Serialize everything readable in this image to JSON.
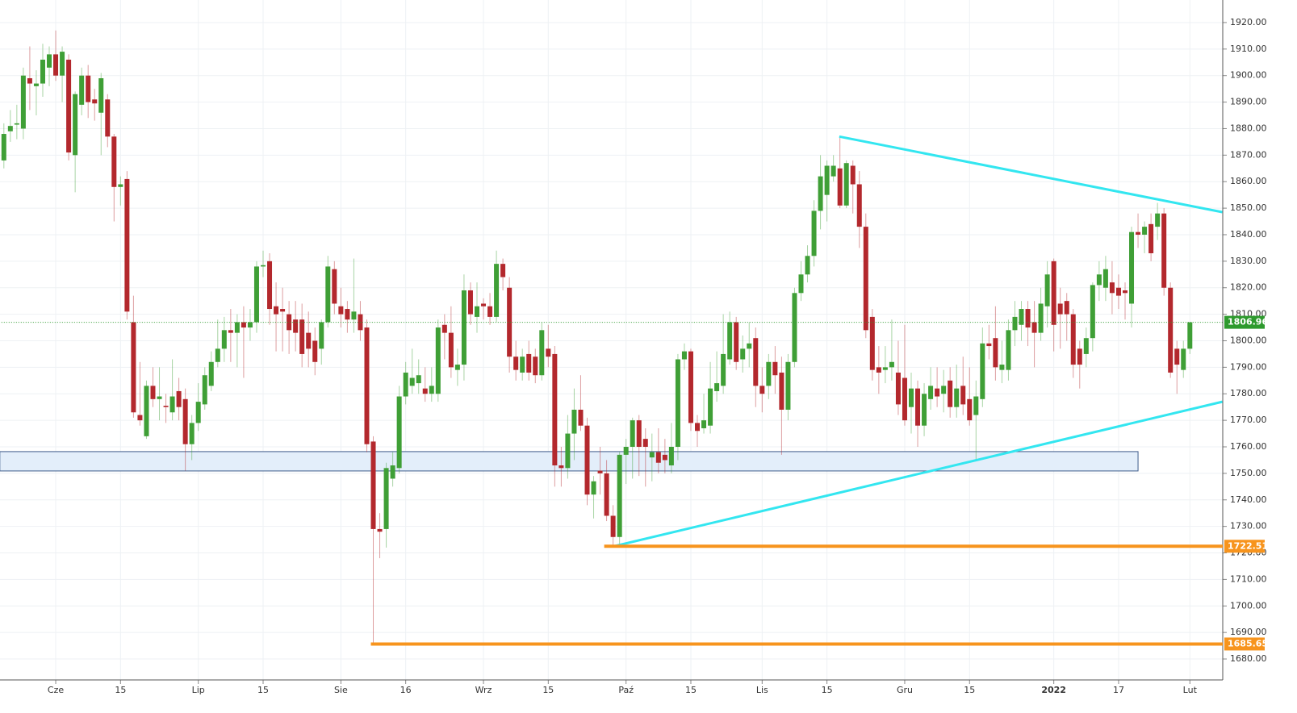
{
  "chart_data": {
    "type": "candlestick",
    "categories": [
      null,
      null,
      null,
      null,
      null,
      null,
      null,
      null,
      "Cze",
      null,
      null,
      null,
      null,
      null,
      null,
      null,
      null,
      null,
      "15",
      null,
      null,
      null,
      null,
      null,
      null,
      null,
      null,
      null,
      null,
      null,
      "Lip",
      null,
      null,
      null,
      null,
      null,
      null,
      null,
      null,
      null,
      "15",
      null,
      null,
      null,
      null,
      null,
      null,
      null,
      null,
      null,
      null,
      null,
      "Sie",
      null,
      null,
      null,
      null,
      null,
      null,
      null,
      null,
      null,
      "16",
      null,
      null,
      null,
      null,
      null,
      null,
      null,
      null,
      null,
      null,
      null,
      "Wrz",
      null,
      null,
      null,
      null,
      null,
      null,
      null,
      null,
      null,
      "15",
      null,
      null,
      null,
      null,
      null,
      null,
      null,
      null,
      null,
      null,
      null,
      "Paź",
      null,
      null,
      null,
      null,
      null,
      null,
      null,
      null,
      null,
      "15",
      null,
      null,
      null,
      null,
      null,
      null,
      null,
      null,
      null,
      null,
      "Lis",
      null,
      null,
      null,
      null,
      null,
      null,
      null,
      null,
      null,
      "15",
      null,
      null,
      null,
      null,
      null,
      null,
      null,
      null,
      null,
      null,
      null,
      "Gru",
      null,
      null,
      null,
      null,
      null,
      null,
      null,
      null,
      null,
      "15",
      null,
      null,
      null,
      null,
      null,
      null,
      null,
      null,
      null,
      null,
      null,
      null,
      "2022",
      null,
      null,
      null,
      null,
      null,
      null,
      null,
      null,
      null,
      "17",
      null,
      null,
      null,
      null,
      null,
      null,
      null,
      null,
      null,
      null,
      "Lut"
    ],
    "open": [
      1868,
      1879,
      1881.5,
      1880,
      1899,
      1896,
      1897,
      1903,
      1908,
      1900,
      1906,
      1870,
      1889,
      1900,
      1891,
      1886,
      1891,
      1877,
      1858,
      1861,
      1807,
      1772,
      1764,
      1783,
      1778,
      1775.5,
      1773,
      1781,
      1778,
      1761,
      1769,
      1776,
      1783,
      1792,
      1797,
      1804,
      1803,
      1807,
      1805,
      1807,
      1828,
      1830,
      1813,
      1812,
      1810,
      1808,
      1808,
      1803,
      1800,
      1797,
      1807,
      1827,
      1813,
      1812,
      1808,
      1810,
      1805,
      1762,
      1729,
      1729,
      1748,
      1752,
      1779,
      1783,
      1784,
      1782,
      1780,
      1780,
      1806,
      1803,
      1789,
      1791,
      1819,
      1809,
      1814,
      1813,
      1809,
      1829,
      1820,
      1794,
      1788,
      1795,
      1794,
      1787,
      1797,
      1795,
      1753,
      1752,
      1765,
      1774,
      1768,
      1742,
      1751,
      1750,
      1734,
      1726,
      1757,
      1760,
      1770,
      1763,
      1756,
      1758,
      1757,
      1753,
      1760,
      1793,
      1796,
      1769,
      1767,
      1768,
      1781,
      1783,
      1793,
      1807,
      1793,
      1797,
      1801,
      1783,
      1783,
      1792,
      1788,
      1774,
      1792,
      1818,
      1825,
      1832,
      1849,
      1855,
      1862,
      1865,
      1851,
      1866,
      1859,
      1843,
      1809,
      1790,
      1789,
      1790,
      1788,
      1786,
      1775,
      1782,
      1768,
      1778,
      1782,
      1780,
      1785,
      1775,
      1783,
      1778,
      1772,
      1778,
      1799,
      1801,
      1789,
      1789,
      1804,
      1806,
      1812,
      1807,
      1803,
      1813,
      1830,
      1814,
      1815,
      1810,
      1797,
      1795,
      1801,
      1821,
      1820,
      1822,
      1820,
      1819,
      1814,
      1841,
      1840,
      1844,
      1843,
      1848,
      1820,
      1797,
      1789,
      1797
    ],
    "high": [
      1882,
      1887,
      1889,
      1903,
      1911,
      1902,
      1912,
      1911,
      1917,
      1911,
      1908,
      1894,
      1903,
      1904,
      1895,
      1901,
      1893,
      1878,
      1862,
      1864,
      1817,
      1792,
      1785,
      1790,
      1790,
      1780,
      1793,
      1786,
      1782,
      1772,
      1784,
      1790,
      1796,
      1808,
      1809,
      1812,
      1810,
      1813,
      1812,
      1830,
      1834,
      1833,
      1822,
      1820,
      1815,
      1815,
      1814,
      1811,
      1805,
      1808,
      1832,
      1830,
      1820,
      1815,
      1831,
      1815,
      1808,
      1764,
      1735,
      1754,
      1758,
      1783,
      1792,
      1797,
      1793,
      1790,
      1790,
      1808,
      1810,
      1813,
      1797,
      1825,
      1822,
      1822,
      1816,
      1818,
      1834,
      1831,
      1824,
      1800,
      1797,
      1800,
      1797,
      1807,
      1806,
      1798,
      1760,
      1772,
      1782,
      1787,
      1771,
      1749,
      1760,
      1755,
      1738,
      1758,
      1763,
      1771,
      1772,
      1767,
      1765,
      1767,
      1763,
      1769,
      1795,
      1799,
      1797,
      1772,
      1780,
      1792,
      1796,
      1810,
      1811,
      1809,
      1802,
      1807,
      1805,
      1790,
      1795,
      1798,
      1794,
      1795,
      1820,
      1830,
      1836,
      1853,
      1870,
      1868,
      1870,
      1877,
      1868,
      1868,
      1864,
      1848,
      1812,
      1798,
      1798,
      1808,
      1800,
      1806,
      1788,
      1785,
      1784,
      1790,
      1790,
      1789,
      1790,
      1791,
      1794,
      1790,
      1785,
      1805,
      1806,
      1813,
      1800,
      1808,
      1815,
      1815,
      1815,
      1815,
      1820,
      1830,
      1831,
      1820,
      1818,
      1812,
      1800,
      1805,
      1822,
      1830,
      1832,
      1830,
      1825,
      1822,
      1843,
      1848,
      1845,
      1848,
      1852,
      1850,
      1822,
      1800,
      1800,
      1807
    ],
    "low": [
      1865,
      1875,
      1876,
      1876,
      1887,
      1885,
      1892,
      1896,
      1898,
      1890,
      1868,
      1856,
      1885,
      1884,
      1883,
      1870,
      1873,
      1845,
      1851,
      1808,
      1771,
      1768,
      1763,
      1775,
      1770,
      1769,
      1770,
      1770,
      1751,
      1755,
      1766,
      1774,
      1781,
      1790,
      1792,
      1792,
      1790,
      1786,
      1800,
      1803,
      1824,
      1806,
      1796,
      1796,
      1795,
      1796,
      1790,
      1790,
      1787,
      1791,
      1805,
      1810,
      1805,
      1803,
      1803,
      1800,
      1758,
      1685.65,
      1718,
      1722,
      1745,
      1750,
      1776,
      1780,
      1780,
      1777,
      1777,
      1777,
      1793,
      1786,
      1783,
      1785,
      1806,
      1803,
      1808,
      1806,
      1807,
      1819,
      1788,
      1785,
      1785,
      1785,
      1784,
      1785,
      1790,
      1745,
      1745,
      1748,
      1755,
      1766,
      1738,
      1733,
      1742,
      1732,
      1723,
      1722.51,
      1746,
      1748,
      1749,
      1745,
      1747,
      1750,
      1750,
      1750,
      1755,
      1789,
      1766,
      1760,
      1765,
      1765,
      1777,
      1780,
      1791,
      1789,
      1788,
      1790,
      1775,
      1773,
      1778,
      1780,
      1757,
      1770,
      1790,
      1815,
      1822,
      1828,
      1842,
      1845,
      1860,
      1850,
      1850,
      1848,
      1835,
      1801,
      1785,
      1780,
      1784,
      1785,
      1772,
      1768,
      1765,
      1760,
      1764,
      1774,
      1775,
      1773,
      1771,
      1771,
      1772,
      1768,
      1755,
      1775,
      1793,
      1785,
      1784,
      1785,
      1798,
      1800,
      1798,
      1790,
      1800,
      1805,
      1796,
      1797,
      1800,
      1786,
      1782,
      1790,
      1796,
      1815,
      1815,
      1810,
      1812,
      1808,
      1805,
      1835,
      1833,
      1830,
      1838,
      1817,
      1786,
      1780,
      1786,
      1795
    ],
    "close": [
      1878,
      1881,
      1882,
      1900,
      1897,
      1897,
      1906,
      1908,
      1900,
      1909,
      1871,
      1893,
      1900,
      1890,
      1889.5,
      1899,
      1877,
      1858,
      1859,
      1811,
      1773,
      1770,
      1783,
      1778,
      1779,
      1775,
      1779,
      1775,
      1761,
      1769,
      1777,
      1787,
      1792,
      1797,
      1804,
      1803,
      1807,
      1805,
      1807,
      1828,
      1828.5,
      1812,
      1810,
      1811,
      1804,
      1803,
      1795,
      1797,
      1792,
      1807,
      1828,
      1814,
      1810,
      1808,
      1811,
      1804,
      1761,
      1729,
      1728,
      1752,
      1753,
      1779,
      1788,
      1786,
      1787,
      1780,
      1783,
      1805,
      1803,
      1790,
      1791,
      1819,
      1810,
      1813,
      1813,
      1809,
      1829,
      1824,
      1794,
      1789,
      1794,
      1788,
      1787,
      1804,
      1794,
      1753,
      1752,
      1765,
      1774,
      1768,
      1742,
      1747,
      1750,
      1734,
      1726,
      1757,
      1760,
      1770,
      1760,
      1760,
      1758,
      1754,
      1755,
      1760,
      1793,
      1796,
      1769,
      1766,
      1770,
      1782,
      1784,
      1795,
      1807,
      1792,
      1797,
      1799,
      1783,
      1780,
      1792,
      1787,
      1774,
      1792,
      1818,
      1825,
      1832,
      1849,
      1862,
      1866,
      1866,
      1851,
      1867,
      1859,
      1843,
      1804,
      1789,
      1788,
      1790,
      1792,
      1776,
      1770,
      1782,
      1768,
      1780,
      1783,
      1779,
      1783,
      1775,
      1782,
      1776,
      1770,
      1779,
      1799,
      1798,
      1790,
      1791,
      1804,
      1809,
      1812,
      1805,
      1803,
      1814,
      1825,
      1806,
      1810,
      1810,
      1791,
      1791,
      1801,
      1821,
      1825,
      1827,
      1818,
      1817,
      1818,
      1841,
      1840,
      1843,
      1833,
      1848,
      1820,
      1788,
      1791,
      1797,
      1806.96
    ],
    "up_color": "#3f9f36",
    "down_color": "#b3282d",
    "ylim": [
      1672.1,
      1928.5
    ],
    "yticks": [
      {
        "value": 1680,
        "label": "1680.00"
      },
      {
        "value": 1690,
        "label": "1690.00"
      },
      {
        "value": 1700,
        "label": "1700.00"
      },
      {
        "value": 1710,
        "label": "1710.00"
      },
      {
        "value": 1720,
        "label": "1720.00"
      },
      {
        "value": 1730,
        "label": "1730.00"
      },
      {
        "value": 1740,
        "label": "1740.00"
      },
      {
        "value": 1750,
        "label": "1750.00"
      },
      {
        "value": 1760,
        "label": "1760.00"
      },
      {
        "value": 1770,
        "label": "1770.00"
      },
      {
        "value": 1780,
        "label": "1780.00"
      },
      {
        "value": 1790,
        "label": "1790.00"
      },
      {
        "value": 1800,
        "label": "1800.00"
      },
      {
        "value": 1810,
        "label": "1810.00"
      },
      {
        "value": 1820,
        "label": "1820.00"
      },
      {
        "value": 1830,
        "label": "1830.00"
      },
      {
        "value": 1840,
        "label": "1840.00"
      },
      {
        "value": 1850,
        "label": "1850.00"
      },
      {
        "value": 1860,
        "label": "1860.00"
      },
      {
        "value": 1870,
        "label": "1870.00"
      },
      {
        "value": 1880,
        "label": "1880.00"
      },
      {
        "value": 1890,
        "label": "1890.00"
      },
      {
        "value": 1900,
        "label": "1900.00"
      },
      {
        "value": 1910,
        "label": "1910.00"
      },
      {
        "value": 1920,
        "label": "1920.00"
      }
    ],
    "grid": true,
    "zones": [
      {
        "from": 0,
        "to": 175,
        "low": 1750.9,
        "high": 1758.2,
        "color": "#3c5a8a"
      }
    ],
    "trendlines": [
      {
        "color": "#33e6f0",
        "x": [
          128.9,
          188
        ],
        "y": [
          1877,
          1848.5
        ]
      },
      {
        "color": "#33e6f0",
        "x": [
          94.1,
          188
        ],
        "y": [
          1722.5,
          1777
        ]
      }
    ],
    "price_lines": [
      {
        "value": 1806.96,
        "from": 0,
        "color": "#2e9a2e",
        "style": "dotted"
      },
      {
        "value": 1722.51,
        "from": 93,
        "color": "#f7941d",
        "style": "solid"
      },
      {
        "value": 1685.65,
        "from": 57,
        "color": "#f7941d",
        "style": "solid"
      }
    ]
  }
}
